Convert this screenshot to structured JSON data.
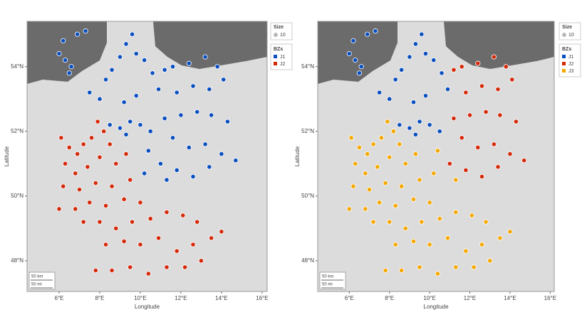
{
  "chart_data": [
    {
      "type": "scatter",
      "xlabel": "Longitude",
      "ylabel": "Latitude",
      "xlim": [
        4.42,
        16.25
      ],
      "ylim": [
        47.05,
        55.4
      ],
      "xticks": [
        {
          "value": 6,
          "label": "6°E"
        },
        {
          "value": 8,
          "label": "8°E"
        },
        {
          "value": 10,
          "label": "10°E"
        },
        {
          "value": 12,
          "label": "12°E"
        },
        {
          "value": 14,
          "label": "14°E"
        },
        {
          "value": 16,
          "label": "16°E"
        }
      ],
      "yticks": [
        {
          "value": 48,
          "label": "48°N"
        },
        {
          "value": 50,
          "label": "50°N"
        },
        {
          "value": 52,
          "label": "52°N"
        },
        {
          "value": 54,
          "label": "54°N"
        }
      ],
      "size_legend": {
        "title": "Size",
        "values": [
          10
        ]
      },
      "legend_title": "BZs",
      "scale_bar": [
        "50 km",
        "50 mi"
      ],
      "series": [
        {
          "name": "J1",
          "color": "#0a4fbf",
          "x": [
            6.0,
            6.3,
            6.6,
            6.2,
            6.9,
            7.3,
            6.5,
            8.3,
            8.6,
            9.0,
            9.3,
            9.6,
            9.8,
            10.2,
            10.6,
            11.2,
            11.6,
            12.4,
            13.2,
            13.8,
            14.1,
            13.4,
            12.6,
            11.8,
            10.9,
            9.8,
            9.2,
            8.0,
            7.5,
            8.5,
            9.0,
            9.5,
            10.0,
            10.5,
            9.3,
            11.2,
            12.0,
            12.8,
            13.5,
            14.3,
            11.6,
            12.4,
            13.2,
            14.0,
            14.7,
            11.0,
            11.8,
            12.6,
            13.4,
            10.4,
            10.2,
            11.3
          ],
          "values": [
            54.4,
            54.2,
            54.0,
            54.8,
            55.0,
            55.1,
            53.8,
            53.6,
            53.9,
            54.3,
            54.7,
            55.0,
            54.4,
            54.2,
            53.8,
            53.9,
            54.0,
            54.1,
            54.3,
            54.0,
            53.6,
            53.3,
            53.4,
            53.2,
            53.3,
            53.1,
            52.9,
            53.0,
            53.2,
            52.2,
            52.1,
            52.3,
            52.2,
            52.0,
            51.9,
            52.4,
            52.5,
            52.6,
            52.5,
            52.3,
            51.8,
            51.5,
            51.6,
            51.3,
            51.1,
            51.0,
            50.8,
            50.6,
            50.9,
            51.4,
            50.7,
            50.5
          ]
        },
        {
          "name": "J2",
          "color": "#d42a0a",
          "x": [
            6.1,
            6.5,
            6.9,
            7.2,
            7.6,
            7.9,
            8.2,
            8.5,
            6.3,
            6.8,
            7.4,
            8.0,
            8.8,
            9.3,
            6.2,
            7.0,
            7.8,
            8.6,
            9.5,
            6.0,
            6.8,
            7.5,
            8.3,
            9.2,
            10.0,
            7.2,
            8.0,
            8.8,
            9.6,
            10.5,
            11.3,
            12.1,
            12.8,
            8.3,
            9.2,
            10.0,
            10.9,
            11.8,
            12.6,
            13.5,
            14.0,
            7.8,
            8.6,
            9.5,
            10.4,
            11.3,
            12.2,
            13.0
          ],
          "values": [
            51.8,
            51.5,
            51.3,
            51.6,
            51.8,
            52.3,
            52.0,
            51.6,
            51.0,
            50.7,
            50.9,
            51.2,
            51.0,
            51.3,
            50.3,
            50.2,
            50.4,
            50.3,
            50.5,
            49.6,
            49.6,
            49.8,
            49.7,
            49.9,
            49.8,
            49.2,
            49.2,
            49.0,
            49.2,
            49.3,
            49.5,
            49.4,
            49.2,
            48.5,
            48.6,
            48.5,
            48.7,
            48.3,
            48.5,
            48.7,
            48.9,
            47.7,
            47.7,
            47.8,
            47.6,
            47.8,
            47.8,
            48.0
          ]
        }
      ]
    },
    {
      "type": "scatter",
      "xlabel": "Longitude",
      "ylabel": "Latitude",
      "xlim": [
        4.43,
        16.2
      ],
      "ylim": [
        47.05,
        55.4
      ],
      "xticks": [
        {
          "value": 6,
          "label": "6°E"
        },
        {
          "value": 8,
          "label": "8°E"
        },
        {
          "value": 10,
          "label": "10°E"
        },
        {
          "value": 12,
          "label": "12°E"
        },
        {
          "value": 14,
          "label": "14°E"
        },
        {
          "value": 16,
          "label": "16°E"
        }
      ],
      "yticks": [
        {
          "value": 48,
          "label": "48°N"
        },
        {
          "value": 50,
          "label": "50°N"
        },
        {
          "value": 52,
          "label": "52°N"
        },
        {
          "value": 54,
          "label": "54°N"
        }
      ],
      "size_legend": {
        "title": "Size",
        "values": [
          10
        ]
      },
      "legend_title": "BZs",
      "scale_bar": [
        "50 km",
        "50 mi"
      ],
      "series": [
        {
          "name": "J1",
          "color": "#0a4fbf",
          "x": [
            6.0,
            6.3,
            6.6,
            6.2,
            6.9,
            7.3,
            6.5,
            8.3,
            8.6,
            9.0,
            9.3,
            9.6,
            9.8,
            10.2,
            10.6,
            9.8,
            9.2,
            8.0,
            7.5,
            10.9,
            8.5,
            9.0,
            9.5,
            10.0,
            10.5,
            9.3
          ],
          "values": [
            54.4,
            54.2,
            54.0,
            54.8,
            55.0,
            55.1,
            53.8,
            53.6,
            53.9,
            54.3,
            54.7,
            55.0,
            54.4,
            54.2,
            53.8,
            53.1,
            52.9,
            53.0,
            53.2,
            53.3,
            52.2,
            52.1,
            52.3,
            52.2,
            52.0,
            51.9
          ]
        },
        {
          "name": "J2",
          "color": "#d42a0a",
          "x": [
            11.2,
            11.6,
            12.4,
            13.2,
            13.8,
            14.1,
            13.4,
            12.6,
            11.8,
            11.2,
            12.0,
            12.8,
            13.5,
            14.3,
            11.6,
            12.4,
            13.2,
            14.0,
            14.7,
            11.0,
            11.8,
            12.6,
            13.4
          ],
          "values": [
            53.9,
            54.0,
            54.1,
            54.3,
            54.0,
            53.6,
            53.3,
            53.4,
            53.2,
            52.4,
            52.5,
            52.6,
            52.5,
            52.3,
            51.8,
            51.5,
            51.6,
            51.3,
            51.1,
            51.0,
            50.8,
            50.6,
            50.9
          ]
        },
        {
          "name": "J3",
          "color": "#f5a800",
          "x": [
            6.1,
            6.5,
            6.9,
            7.2,
            7.6,
            7.9,
            8.2,
            8.5,
            6.3,
            6.8,
            7.4,
            8.0,
            8.8,
            9.3,
            6.2,
            7.0,
            7.8,
            8.6,
            9.5,
            6.0,
            6.8,
            7.5,
            8.3,
            9.2,
            10.0,
            7.2,
            8.0,
            8.8,
            9.6,
            10.5,
            11.3,
            12.1,
            12.8,
            8.3,
            9.2,
            10.0,
            10.9,
            11.8,
            12.6,
            13.5,
            14.0,
            7.8,
            8.6,
            9.5,
            10.4,
            11.3,
            12.2,
            13.0,
            10.4,
            10.2,
            11.3
          ],
          "values": [
            51.8,
            51.5,
            51.3,
            51.6,
            51.8,
            52.3,
            52.0,
            51.6,
            51.0,
            50.7,
            50.9,
            51.2,
            51.0,
            51.3,
            50.3,
            50.2,
            50.4,
            50.3,
            50.5,
            49.6,
            49.6,
            49.8,
            49.7,
            49.9,
            49.8,
            49.2,
            49.2,
            49.0,
            49.2,
            49.3,
            49.5,
            49.4,
            49.2,
            48.5,
            48.6,
            48.5,
            48.7,
            48.3,
            48.5,
            48.7,
            48.9,
            47.7,
            47.7,
            47.8,
            47.6,
            47.8,
            47.8,
            48.0,
            51.4,
            50.7,
            50.5
          ]
        }
      ]
    }
  ]
}
